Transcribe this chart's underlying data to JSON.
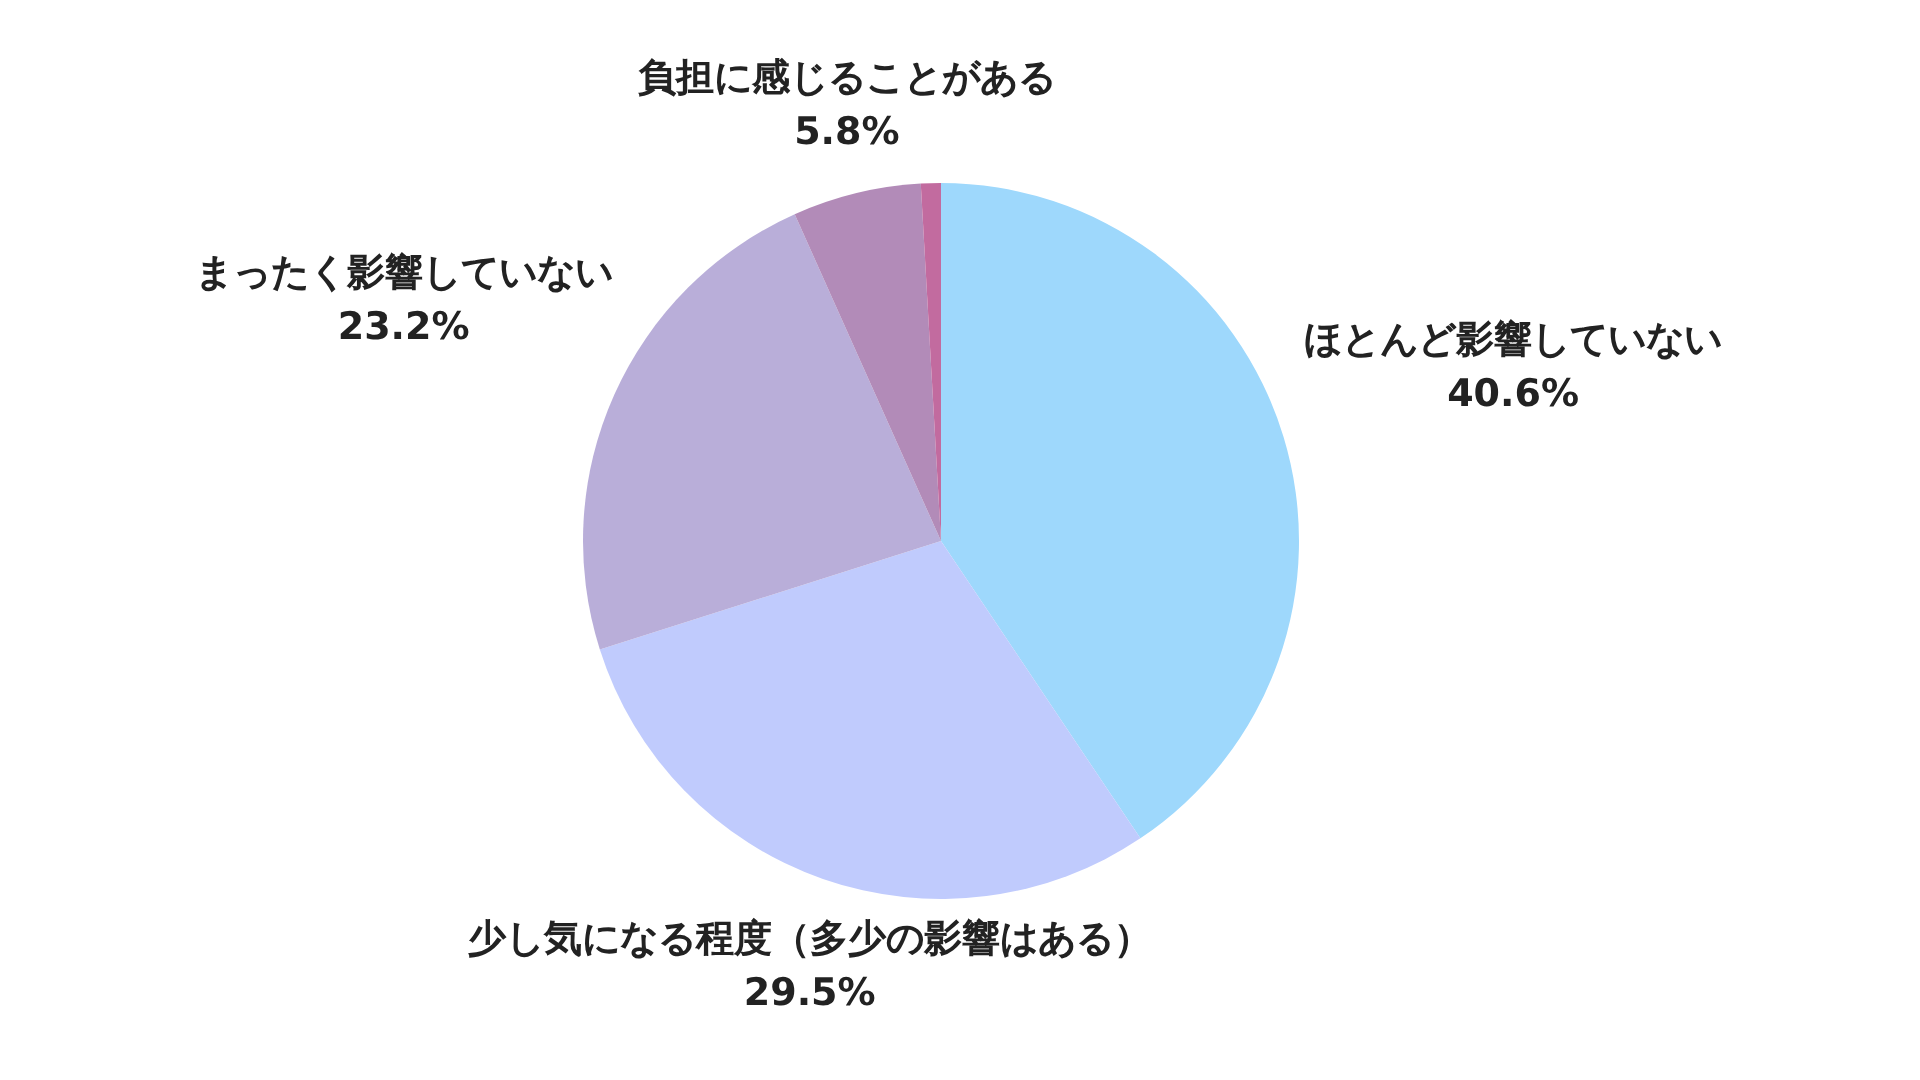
{
  "chart_data": {
    "type": "pie",
    "categories": [
      "ほとんど影響していない",
      "少し気になる程度（多少の影響はある）",
      "まったく影響していない",
      "負担に感じることがある",
      null
    ],
    "values": [
      40.6,
      29.5,
      23.2,
      5.8,
      0.9
    ],
    "colors": [
      "#9ed8fc",
      "#c0cbfd",
      "#b9aed9",
      "#b28bb8",
      "#c26b9f"
    ],
    "value_labels": [
      "40.6%",
      "29.5%",
      "23.2%",
      "5.8%",
      null
    ]
  }
}
